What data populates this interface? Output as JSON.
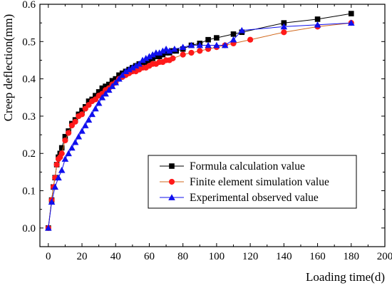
{
  "chart_data": {
    "type": "line",
    "xlabel": "Loading time(d)",
    "ylabel": "Creep deflection(mm)",
    "xlim": [
      -5,
      200
    ],
    "ylim": [
      -0.05,
      0.6
    ],
    "x_ticks": [
      "0",
      "20",
      "40",
      "60",
      "80",
      "100",
      "120",
      "140",
      "160",
      "180",
      "200"
    ],
    "y_ticks": [
      "0.0",
      "0.1",
      "0.2",
      "0.3",
      "0.4",
      "0.5",
      "0.6"
    ],
    "grid": false,
    "legend_position": "lower-right",
    "series": [
      {
        "name": "Formula calculation value",
        "marker": "square",
        "color": "#000000",
        "line_color": "#000000",
        "x": [
          0,
          2,
          3,
          4,
          5,
          6,
          7,
          8,
          10,
          12,
          14,
          16,
          18,
          20,
          22,
          24,
          26,
          28,
          30,
          32,
          34,
          36,
          38,
          40,
          42,
          44,
          46,
          48,
          50,
          52,
          54,
          56,
          58,
          60,
          62,
          64,
          66,
          68,
          70,
          72,
          74,
          76,
          80,
          85,
          90,
          95,
          100,
          110,
          115,
          140,
          160,
          180
        ],
        "y": [
          0.0,
          0.075,
          0.11,
          0.135,
          0.17,
          0.19,
          0.2,
          0.215,
          0.245,
          0.26,
          0.28,
          0.29,
          0.305,
          0.315,
          0.325,
          0.34,
          0.345,
          0.355,
          0.365,
          0.375,
          0.38,
          0.385,
          0.395,
          0.4,
          0.41,
          0.415,
          0.42,
          0.425,
          0.43,
          0.435,
          0.44,
          0.44,
          0.445,
          0.45,
          0.455,
          0.46,
          0.46,
          0.465,
          0.47,
          0.47,
          0.475,
          0.475,
          0.48,
          0.49,
          0.495,
          0.505,
          0.51,
          0.52,
          0.525,
          0.55,
          0.56,
          0.575
        ]
      },
      {
        "name": "Finite element simulation value",
        "marker": "circle",
        "color": "#ff1a1a",
        "line_color": "#d2691e",
        "x": [
          0,
          2,
          3,
          4,
          5,
          6,
          7,
          8,
          10,
          12,
          14,
          16,
          18,
          20,
          22,
          24,
          26,
          28,
          30,
          32,
          34,
          36,
          38,
          40,
          42,
          44,
          46,
          48,
          50,
          52,
          54,
          56,
          58,
          60,
          62,
          64,
          66,
          68,
          70,
          72,
          74,
          80,
          85,
          90,
          95,
          100,
          105,
          110,
          120,
          140,
          160,
          180
        ],
        "y": [
          0.0,
          0.075,
          0.11,
          0.135,
          0.17,
          0.185,
          0.19,
          0.2,
          0.235,
          0.255,
          0.275,
          0.285,
          0.3,
          0.305,
          0.32,
          0.33,
          0.34,
          0.345,
          0.355,
          0.36,
          0.37,
          0.375,
          0.385,
          0.39,
          0.4,
          0.405,
          0.41,
          0.415,
          0.42,
          0.42,
          0.425,
          0.43,
          0.43,
          0.435,
          0.44,
          0.44,
          0.445,
          0.445,
          0.45,
          0.45,
          0.455,
          0.465,
          0.47,
          0.475,
          0.48,
          0.485,
          0.49,
          0.495,
          0.505,
          0.525,
          0.54,
          0.55
        ]
      },
      {
        "name": "Experimental observed value",
        "marker": "triangle",
        "color": "#1010ee",
        "line_color": "#1010ee",
        "x": [
          0,
          2,
          4,
          6,
          8,
          10,
          12,
          14,
          16,
          18,
          20,
          22,
          24,
          26,
          28,
          30,
          32,
          34,
          36,
          38,
          40,
          42,
          44,
          46,
          48,
          50,
          52,
          54,
          56,
          58,
          60,
          62,
          64,
          66,
          68,
          70,
          72,
          75,
          80,
          85,
          90,
          95,
          100,
          105,
          110,
          115,
          140,
          160,
          180
        ],
        "y": [
          0.0,
          0.07,
          0.11,
          0.135,
          0.155,
          0.185,
          0.2,
          0.215,
          0.23,
          0.245,
          0.26,
          0.275,
          0.29,
          0.305,
          0.32,
          0.335,
          0.35,
          0.36,
          0.37,
          0.38,
          0.39,
          0.4,
          0.41,
          0.42,
          0.425,
          0.43,
          0.435,
          0.44,
          0.45,
          0.455,
          0.46,
          0.465,
          0.47,
          0.47,
          0.475,
          0.48,
          0.475,
          0.48,
          0.485,
          0.49,
          0.49,
          0.49,
          0.49,
          0.49,
          0.505,
          0.53,
          0.54,
          0.545,
          0.55
        ]
      }
    ]
  }
}
